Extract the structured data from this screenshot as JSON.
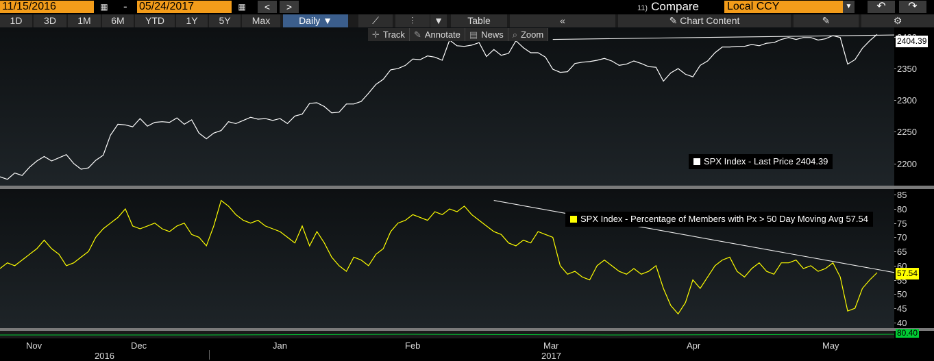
{
  "toolbar": {
    "start_date": "11/15/2016",
    "dash": "-",
    "end_date": "05/24/2017",
    "prev_glyph": "<",
    "next_glyph": ">",
    "compare_num": "11)",
    "compare_label": "Compare",
    "ccy": "Local CCY",
    "undo_glyph": "↶",
    "redo_glyph": "↷"
  },
  "periods": [
    "1D",
    "3D",
    "1M",
    "6M",
    "YTD",
    "1Y",
    "5Y",
    "Max"
  ],
  "frequency": "Daily ▼",
  "table_label": "Table",
  "collapse_glyph": "«",
  "chart_content_label": "Chart Content",
  "settings_glyph": "⚙",
  "tools": {
    "track": "Track",
    "annotate": "Annotate",
    "news": "News",
    "zoom": "Zoom"
  },
  "colors": {
    "price_line": "#ffffff",
    "breadth_line": "#ffff00",
    "bottom_line": "#00cc33",
    "accent": "#f39c1a"
  },
  "chart_data": [
    {
      "type": "line",
      "series": [
        {
          "name": "SPX Index - Last Price",
          "last": "2404.39",
          "values": [
            2179,
            2175,
            2185,
            2181,
            2194,
            2204,
            2211,
            2204,
            2209,
            2214,
            2200,
            2191,
            2193,
            2205,
            2213,
            2245,
            2262,
            2261,
            2258,
            2271,
            2259,
            2265,
            2266,
            2265,
            2272,
            2262,
            2269,
            2248,
            2239,
            2248,
            2252,
            2266,
            2263,
            2268,
            2273,
            2270,
            2271,
            2268,
            2271,
            2263,
            2275,
            2278,
            2295,
            2296,
            2290,
            2280,
            2281,
            2294,
            2294,
            2298,
            2311,
            2325,
            2333,
            2348,
            2350,
            2355,
            2365,
            2364,
            2370,
            2368,
            2363,
            2395,
            2386,
            2385,
            2387,
            2391,
            2369,
            2380,
            2371,
            2374,
            2394,
            2383,
            2375,
            2375,
            2368,
            2349,
            2344,
            2345,
            2358,
            2360,
            2361,
            2363,
            2366,
            2362,
            2355,
            2357,
            2362,
            2358,
            2353,
            2352,
            2330,
            2343,
            2350,
            2341,
            2337,
            2355,
            2362,
            2375,
            2384,
            2384,
            2385,
            2385,
            2388,
            2386,
            2390,
            2391,
            2396,
            2399,
            2396,
            2399,
            2399,
            2395,
            2397,
            2402,
            2399,
            2357,
            2364,
            2382,
            2394,
            2404
          ]
        }
      ],
      "ticks": [
        "2400",
        "2350",
        "2300",
        "2250",
        "2200"
      ],
      "ylim": [
        2165,
        2415
      ],
      "trendline": "from the February peak to the last price"
    },
    {
      "type": "line",
      "series": [
        {
          "name": "SPX Index - Percentage of Members with Px > 50 Day Moving Avg",
          "last": "57.54",
          "values": [
            59,
            61,
            60,
            62,
            64,
            66,
            69,
            66,
            64,
            60,
            61,
            63,
            65,
            70,
            73,
            75,
            77,
            80,
            74,
            73,
            74,
            75,
            73,
            72,
            74,
            75,
            71,
            70,
            67,
            74,
            83,
            81,
            78,
            76,
            75,
            76,
            74,
            73,
            72,
            70,
            68,
            74,
            67,
            72,
            68,
            63,
            60,
            58,
            63,
            62,
            60,
            64,
            66,
            72,
            75,
            76,
            78,
            77,
            76,
            79,
            78,
            80,
            79,
            81,
            78,
            76,
            74,
            72,
            71,
            68,
            67,
            69,
            68,
            72,
            71,
            70,
            60,
            57,
            58,
            56,
            55,
            60,
            62,
            60,
            58,
            57,
            59,
            57,
            58,
            60,
            52,
            46,
            43,
            47,
            55,
            52,
            56,
            60,
            62,
            63,
            58,
            56,
            59,
            61,
            58,
            57,
            61,
            61,
            62,
            59,
            60,
            58,
            59,
            61,
            56,
            44,
            45,
            52,
            55,
            57.54
          ]
        }
      ],
      "ticks": [
        "85",
        "80",
        "75",
        "70",
        "65",
        "60",
        "55",
        "50",
        "45",
        "40"
      ],
      "ylim": [
        38,
        87
      ],
      "trendline": "descending from early February highs to the last value"
    }
  ],
  "indicator_value": "80.40",
  "xaxis": {
    "months": [
      "Nov",
      "Dec",
      "Jan",
      "Feb",
      "Mar",
      "Apr",
      "May"
    ],
    "years": [
      "2016",
      "2017"
    ]
  }
}
